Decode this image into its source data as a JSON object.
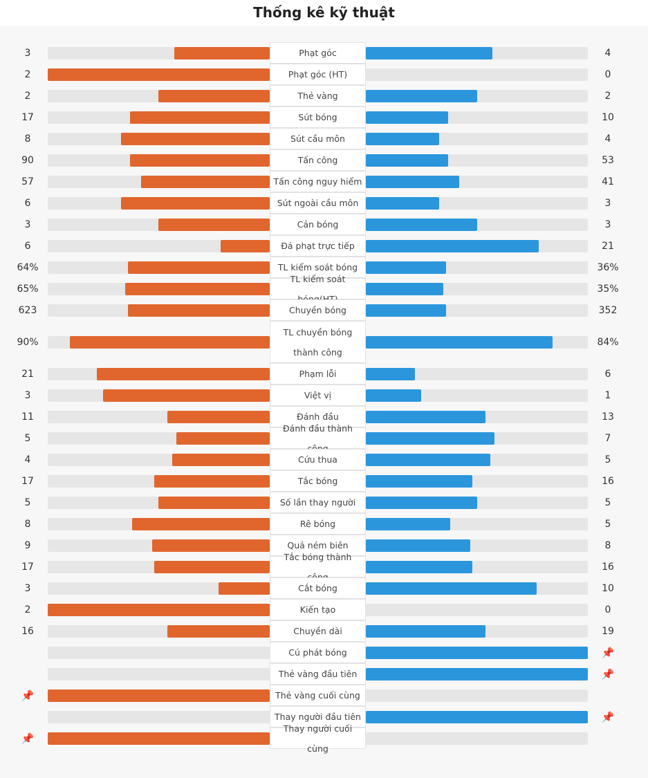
{
  "page": {
    "title": "Thống kê kỹ thuật"
  },
  "colors": {
    "home": "#e0662e",
    "away": "#2b96dc",
    "track": "#e6e6e6",
    "pin": "#f0b400"
  },
  "chart_data": {
    "type": "bar",
    "orientation": "horizontal-diverging",
    "title": "Thống kê kỹ thuật",
    "rows": [
      {
        "label": "Phạt góc",
        "home": "3",
        "away": "4",
        "home_share": 0.43,
        "away_share": 0.57
      },
      {
        "label": "Phạt góc (HT)",
        "home": "2",
        "away": "0",
        "home_share": 1.0,
        "away_share": 0.0
      },
      {
        "label": "Thẻ vàng",
        "home": "2",
        "away": "2",
        "home_share": 0.5,
        "away_share": 0.5
      },
      {
        "label": "Sút bóng",
        "home": "17",
        "away": "10",
        "home_share": 0.63,
        "away_share": 0.37
      },
      {
        "label": "Sút cầu môn",
        "home": "8",
        "away": "4",
        "home_share": 0.67,
        "away_share": 0.33
      },
      {
        "label": "Tấn công",
        "home": "90",
        "away": "53",
        "home_share": 0.63,
        "away_share": 0.37
      },
      {
        "label": "Tấn công nguy hiểm",
        "home": "57",
        "away": "41",
        "home_share": 0.58,
        "away_share": 0.42
      },
      {
        "label": "Sút ngoài cầu môn",
        "home": "6",
        "away": "3",
        "home_share": 0.67,
        "away_share": 0.33
      },
      {
        "label": "Cản bóng",
        "home": "3",
        "away": "3",
        "home_share": 0.5,
        "away_share": 0.5
      },
      {
        "label": "Đá phạt trực tiếp",
        "home": "6",
        "away": "21",
        "home_share": 0.22,
        "away_share": 0.78
      },
      {
        "label": "TL kiểm soát bóng",
        "home": "64%",
        "away": "36%",
        "home_share": 0.64,
        "away_share": 0.36
      },
      {
        "label": "TL kiểm soát bóng(HT)",
        "home": "65%",
        "away": "35%",
        "home_share": 0.65,
        "away_share": 0.35
      },
      {
        "label": "Chuyền bóng",
        "home": "623",
        "away": "352",
        "home_share": 0.64,
        "away_share": 0.36
      },
      {
        "label": "TL chuyền bóng thành công",
        "home": "90%",
        "away": "84%",
        "home_share": 0.9,
        "away_share": 0.84,
        "tall": true
      },
      {
        "label": "Phạm lỗi",
        "home": "21",
        "away": "6",
        "home_share": 0.78,
        "away_share": 0.22
      },
      {
        "label": "Việt vị",
        "home": "3",
        "away": "1",
        "home_share": 0.75,
        "away_share": 0.25
      },
      {
        "label": "Đánh đầu",
        "home": "11",
        "away": "13",
        "home_share": 0.46,
        "away_share": 0.54
      },
      {
        "label": "Đánh đầu thành công",
        "home": "5",
        "away": "7",
        "home_share": 0.42,
        "away_share": 0.58
      },
      {
        "label": "Cứu thua",
        "home": "4",
        "away": "5",
        "home_share": 0.44,
        "away_share": 0.56
      },
      {
        "label": "Tắc bóng",
        "home": "17",
        "away": "16",
        "home_share": 0.52,
        "away_share": 0.48
      },
      {
        "label": "Số lần thay người",
        "home": "5",
        "away": "5",
        "home_share": 0.5,
        "away_share": 0.5
      },
      {
        "label": "Rê bóng",
        "home": "8",
        "away": "5",
        "home_share": 0.62,
        "away_share": 0.38
      },
      {
        "label": "Quả ném biên",
        "home": "9",
        "away": "8",
        "home_share": 0.53,
        "away_share": 0.47
      },
      {
        "label": "Tắc bóng thành công",
        "home": "17",
        "away": "16",
        "home_share": 0.52,
        "away_share": 0.48
      },
      {
        "label": "Cắt bóng",
        "home": "3",
        "away": "10",
        "home_share": 0.23,
        "away_share": 0.77
      },
      {
        "label": "Kiến tạo",
        "home": "2",
        "away": "0",
        "home_share": 1.0,
        "away_share": 0.0
      },
      {
        "label": "Chuyền dài",
        "home": "16",
        "away": "19",
        "home_share": 0.46,
        "away_share": 0.54
      },
      {
        "label": "Cú phát bóng",
        "home": "",
        "away": "",
        "home_share": 0.0,
        "away_share": 1.0,
        "pin": "away"
      },
      {
        "label": "Thẻ vàng đầu tiên",
        "home": "",
        "away": "",
        "home_share": 0.0,
        "away_share": 1.0,
        "pin": "away"
      },
      {
        "label": "Thẻ vàng cuối cùng",
        "home": "",
        "away": "",
        "home_share": 1.0,
        "away_share": 0.0,
        "pin": "home"
      },
      {
        "label": "Thay người đầu tiên",
        "home": "",
        "away": "",
        "home_share": 0.0,
        "away_share": 1.0,
        "pin": "away"
      },
      {
        "label": "Thay người cuối cùng",
        "home": "",
        "away": "",
        "home_share": 1.0,
        "away_share": 0.0,
        "pin": "home"
      }
    ]
  }
}
